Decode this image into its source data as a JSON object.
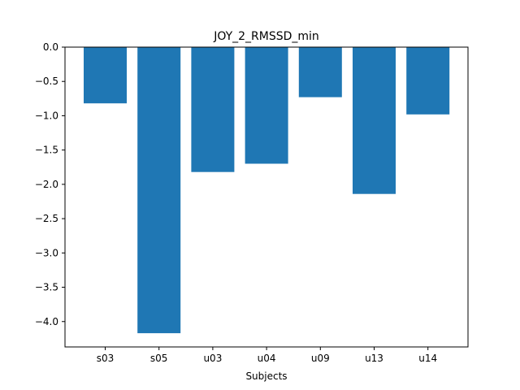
{
  "chart_data": {
    "type": "bar",
    "title": "JOY_2_RMSSD_min",
    "xlabel": "Subjects",
    "ylabel": "",
    "categories": [
      "s03",
      "s05",
      "u03",
      "u04",
      "u09",
      "u13",
      "u14"
    ],
    "values": [
      -0.82,
      -4.17,
      -1.82,
      -1.7,
      -0.73,
      -2.14,
      -0.98
    ],
    "ylim": [
      -4.37,
      0.0
    ],
    "yticks": [
      0.0,
      -0.5,
      -1.0,
      -1.5,
      -2.0,
      -2.5,
      -3.0,
      -3.5,
      -4.0
    ],
    "ytick_labels": [
      "0.0",
      "−0.5",
      "−1.0",
      "−1.5",
      "−2.0",
      "−2.5",
      "−3.0",
      "−3.5",
      "−4.0"
    ],
    "bar_color": "#1f77b4",
    "grid": false,
    "legend": "none"
  }
}
